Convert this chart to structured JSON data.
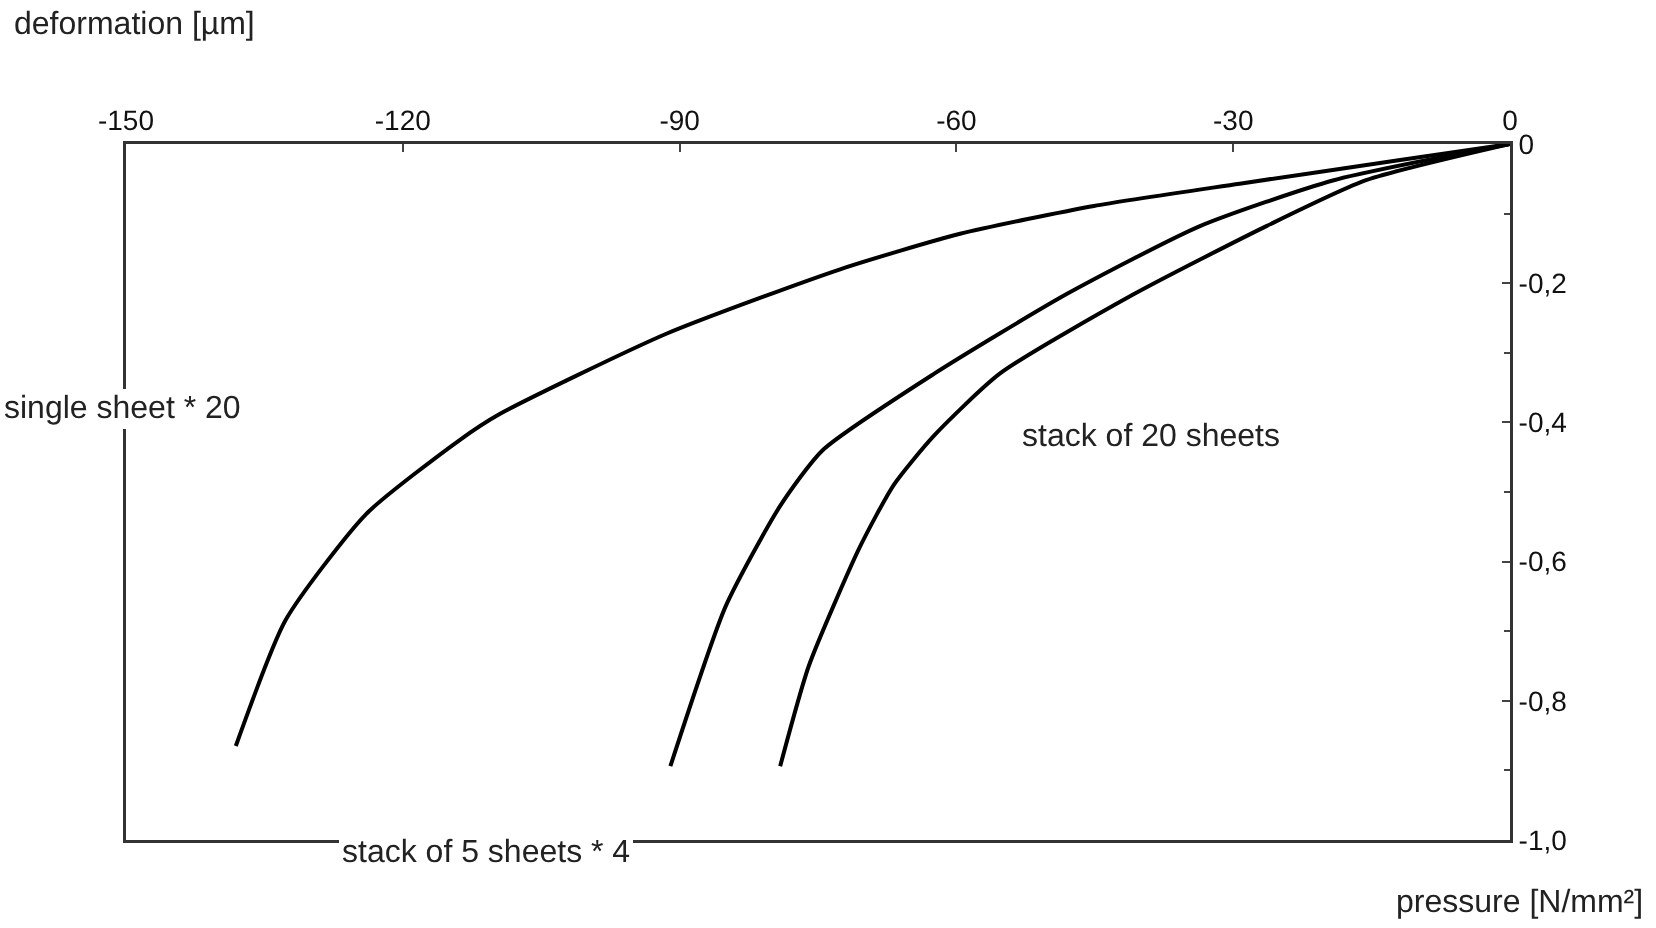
{
  "chart_data": {
    "type": "line",
    "xlabel": "deformation [µm]",
    "ylabel": "pressure [N/mm²]",
    "xlim": [
      -150,
      0
    ],
    "xticks": [
      -150,
      -120,
      -90,
      -60,
      -30,
      0
    ],
    "ylim": [
      -1.0,
      0
    ],
    "yticks": [
      {
        "value": 0,
        "label": "0"
      },
      {
        "value": -0.2,
        "label": "-0,2"
      },
      {
        "value": -0.4,
        "label": "-0,4"
      },
      {
        "value": -0.6,
        "label": "-0,6"
      },
      {
        "value": -0.8,
        "label": "-0,8"
      },
      {
        "value": -1.0,
        "label": "-1,0"
      }
    ],
    "grid": false,
    "marker": "none",
    "line_style": "solid",
    "series": [
      {
        "color": "#000000",
        "x": [
          0,
          -11.9,
          -29.3,
          -45.1,
          -59.6,
          -72.6,
          -91.5,
          -109.5,
          -113.8,
          -124,
          -132.7,
          -138.1
        ],
        "values": [
          0,
          -0.023,
          -0.057,
          -0.089,
          -0.129,
          -0.18,
          -0.273,
          -0.388,
          -0.425,
          -0.532,
          -0.684,
          -0.865
        ]
      },
      {
        "color": "#000000",
        "x": [
          0,
          -19.1,
          -33.6,
          -48.1,
          -62.4,
          -74.5,
          -79.1,
          -85,
          -91
        ],
        "values": [
          0,
          -0.052,
          -0.118,
          -0.216,
          -0.33,
          -0.44,
          -0.52,
          -0.664,
          -0.894
        ]
      },
      {
        "color": "#000000",
        "x": [
          0,
          -15.6,
          -26.4,
          -40.8,
          -55.3,
          -62.5,
          -66.8,
          -70.5,
          -76,
          -79.1
        ],
        "values": [
          0,
          -0.052,
          -0.118,
          -0.216,
          -0.33,
          -0.42,
          -0.49,
          -0.58,
          -0.75,
          -0.894
        ]
      }
    ],
    "annotations": [
      "single sheet * 20",
      "stack of 20 sheets",
      "stack of 5 sheets * 4"
    ]
  }
}
